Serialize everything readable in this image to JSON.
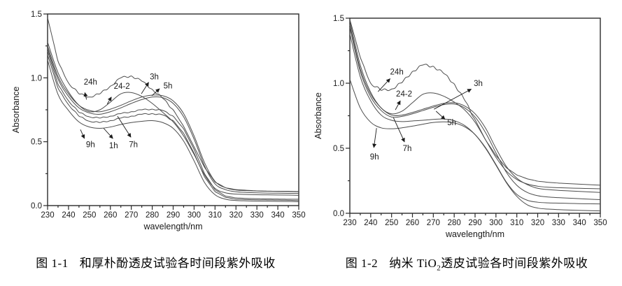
{
  "page": {
    "background": "#ffffff"
  },
  "colors": {
    "curve": "#4d4d4d",
    "axis": "#2a2a2a",
    "text": "#1a1a1a"
  },
  "figures": [
    {
      "caption": {
        "fig": "图 1-1",
        "pre": "和厚朴酚透皮试验各时间段紫外吸收",
        "sub": "",
        "post": ""
      }
    },
    {
      "caption": {
        "fig": "图 1-2",
        "pre": "纳米 TiO",
        "sub": "2",
        "post": "透皮试验各时间段紫外吸收"
      }
    }
  ],
  "chart_data": [
    {
      "type": "line",
      "title": "",
      "xlabel": "wavelength/nm",
      "ylabel": "Absorbance",
      "xlim": [
        230,
        350
      ],
      "ylim": [
        0,
        1.5
      ],
      "x_major_step": 10,
      "x_minor_step": 5,
      "y_major_step": 0.5,
      "y_minor_step": 0.25,
      "grid": false,
      "legend": "none",
      "x": [
        230,
        235,
        240,
        245,
        250,
        255,
        260,
        265,
        270,
        275,
        280,
        285,
        290,
        295,
        300,
        305,
        310,
        315,
        320,
        325,
        330,
        335,
        340,
        345,
        350
      ],
      "series": [
        {
          "name": "24h",
          "wiggle": 0.007,
          "values": [
            1.47,
            1.13,
            0.96,
            0.875,
            0.85,
            0.875,
            0.935,
            1.0,
            1.015,
            0.975,
            0.91,
            0.84,
            0.75,
            0.62,
            0.46,
            0.3,
            0.185,
            0.14,
            0.125,
            0.12,
            0.115,
            0.113,
            0.112,
            0.112,
            0.11
          ]
        },
        {
          "name": "24-2",
          "wiggle": 0,
          "values": [
            1.28,
            1.04,
            0.89,
            0.785,
            0.735,
            0.75,
            0.81,
            0.875,
            0.885,
            0.855,
            0.8,
            0.73,
            0.655,
            0.545,
            0.4,
            0.24,
            0.135,
            0.1,
            0.09,
            0.087,
            0.085,
            0.084,
            0.083,
            0.082,
            0.08
          ]
        },
        {
          "name": "3h",
          "wiggle": 0,
          "values": [
            1.25,
            1.01,
            0.875,
            0.785,
            0.745,
            0.735,
            0.755,
            0.785,
            0.82,
            0.85,
            0.865,
            0.86,
            0.82,
            0.72,
            0.545,
            0.335,
            0.19,
            0.14,
            0.122,
            0.117,
            0.114,
            0.112,
            0.111,
            0.11,
            0.108
          ]
        },
        {
          "name": "5h",
          "wiggle": 0,
          "values": [
            1.23,
            0.99,
            0.855,
            0.765,
            0.725,
            0.715,
            0.735,
            0.765,
            0.8,
            0.83,
            0.85,
            0.845,
            0.8,
            0.695,
            0.52,
            0.31,
            0.17,
            0.125,
            0.108,
            0.103,
            0.1,
            0.098,
            0.097,
            0.096,
            0.095
          ]
        },
        {
          "name": "7h",
          "wiggle": 0.004,
          "values": [
            1.21,
            0.95,
            0.82,
            0.73,
            0.695,
            0.685,
            0.7,
            0.72,
            0.735,
            0.75,
            0.755,
            0.745,
            0.7,
            0.6,
            0.44,
            0.25,
            0.125,
            0.075,
            0.06,
            0.056,
            0.054,
            0.052,
            0.051,
            0.05,
            0.05
          ]
        },
        {
          "name": "1h",
          "wiggle": 0.004,
          "values": [
            1.18,
            0.92,
            0.79,
            0.7,
            0.66,
            0.65,
            0.665,
            0.685,
            0.7,
            0.715,
            0.72,
            0.71,
            0.665,
            0.565,
            0.41,
            0.225,
            0.11,
            0.065,
            0.05,
            0.047,
            0.045,
            0.044,
            0.043,
            0.042,
            0.04
          ]
        },
        {
          "name": "9h",
          "wiggle": 0,
          "values": [
            1.14,
            0.87,
            0.745,
            0.655,
            0.615,
            0.605,
            0.615,
            0.635,
            0.65,
            0.66,
            0.665,
            0.65,
            0.605,
            0.505,
            0.35,
            0.18,
            0.085,
            0.05,
            0.04,
            0.037,
            0.035,
            0.034,
            0.033,
            0.032,
            0.03
          ]
        }
      ],
      "annotations": [
        {
          "label": "24h",
          "lx": 250.5,
          "ly": 0.97,
          "ax1": 248.6,
          "ay1": 0.83,
          "ax2": 247.8,
          "ay2": 0.885
        },
        {
          "label": "24-2",
          "lx": 265.5,
          "ly": 0.935,
          "ax1": 258.5,
          "ay1": 0.795,
          "ax2": 260.5,
          "ay2": 0.85
        },
        {
          "label": "3h",
          "lx": 281,
          "ly": 1.01,
          "ax1": 274.8,
          "ay1": 0.875,
          "ax2": 278.3,
          "ay2": 0.965
        },
        {
          "label": "5h",
          "lx": 287.5,
          "ly": 0.94,
          "ax1": 279.8,
          "ay1": 0.86,
          "ax2": 283.5,
          "ay2": 0.915
        },
        {
          "label": "9h",
          "lx": 250.5,
          "ly": 0.48,
          "ax1": 245.7,
          "ay1": 0.595,
          "ax2": 247.6,
          "ay2": 0.525
        },
        {
          "label": "1h",
          "lx": 261.5,
          "ly": 0.47,
          "ax1": 256.8,
          "ay1": 0.605,
          "ax2": 261.2,
          "ay2": 0.525
        },
        {
          "label": "7h",
          "lx": 271,
          "ly": 0.48,
          "ax1": 263.4,
          "ay1": 0.7,
          "ax2": 269.8,
          "ay2": 0.535
        }
      ]
    },
    {
      "type": "line",
      "title": "",
      "xlabel": "wavelength/nm",
      "ylabel": "Absorbance",
      "xlim": [
        230,
        350
      ],
      "ylim": [
        0,
        1.5
      ],
      "x_major_step": 10,
      "x_minor_step": 5,
      "y_major_step": 0.5,
      "y_minor_step": 0.25,
      "grid": false,
      "legend": "none",
      "x": [
        230,
        235,
        240,
        245,
        250,
        255,
        260,
        265,
        270,
        275,
        280,
        285,
        290,
        295,
        300,
        305,
        310,
        315,
        320,
        325,
        330,
        335,
        340,
        345,
        350
      ],
      "series": [
        {
          "name": "24h",
          "wiggle": 0.009,
          "values": [
            1.49,
            1.2,
            1.0,
            0.945,
            0.955,
            1.005,
            1.09,
            1.14,
            1.13,
            1.075,
            0.995,
            0.87,
            0.72,
            0.565,
            0.445,
            0.35,
            0.295,
            0.265,
            0.247,
            0.238,
            0.232,
            0.228,
            0.224,
            0.22,
            0.216
          ]
        },
        {
          "name": "24-2",
          "wiggle": 0,
          "values": [
            1.48,
            1.14,
            0.93,
            0.81,
            0.765,
            0.785,
            0.85,
            0.915,
            0.925,
            0.9,
            0.855,
            0.795,
            0.7,
            0.565,
            0.43,
            0.325,
            0.26,
            0.225,
            0.208,
            0.2,
            0.197,
            0.194,
            0.192,
            0.19,
            0.188
          ]
        },
        {
          "name": "3h",
          "wiggle": 0,
          "values": [
            1.45,
            1.11,
            0.915,
            0.81,
            0.755,
            0.755,
            0.775,
            0.8,
            0.825,
            0.845,
            0.85,
            0.825,
            0.765,
            0.655,
            0.5,
            0.36,
            0.27,
            0.22,
            0.192,
            0.182,
            0.176,
            0.172,
            0.168,
            0.164,
            0.16
          ]
        },
        {
          "name": "7h",
          "wiggle": 0,
          "values": [
            1.43,
            1.09,
            0.895,
            0.79,
            0.74,
            0.745,
            0.765,
            0.79,
            0.815,
            0.835,
            0.84,
            0.81,
            0.74,
            0.62,
            0.465,
            0.315,
            0.215,
            0.16,
            0.135,
            0.125,
            0.12,
            0.116,
            0.112,
            0.108,
            0.105
          ]
        },
        {
          "name": "5h",
          "wiggle": 0,
          "values": [
            1.38,
            1.05,
            0.865,
            0.755,
            0.715,
            0.705,
            0.71,
            0.715,
            0.722,
            0.725,
            0.712,
            0.675,
            0.605,
            0.505,
            0.375,
            0.24,
            0.145,
            0.1,
            0.085,
            0.08,
            0.078,
            0.076,
            0.074,
            0.073,
            0.072
          ]
        },
        {
          "name": "9h",
          "wiggle": 0,
          "values": [
            1.03,
            0.81,
            0.7,
            0.657,
            0.65,
            0.657,
            0.67,
            0.685,
            0.698,
            0.703,
            0.695,
            0.665,
            0.605,
            0.5,
            0.37,
            0.235,
            0.13,
            0.065,
            0.04,
            0.032,
            0.028,
            0.025,
            0.022,
            0.02,
            0.018
          ]
        }
      ],
      "annotations": [
        {
          "label": "24h",
          "lx": 252.5,
          "ly": 1.09,
          "ax1": 243.5,
          "ay1": 0.935,
          "ax2": 249.3,
          "ay2": 1.035
        },
        {
          "label": "24-2",
          "lx": 256,
          "ly": 0.92,
          "ax1": 251.8,
          "ay1": 0.795,
          "ax2": 254.2,
          "ay2": 0.865
        },
        {
          "label": "3h",
          "lx": 291.5,
          "ly": 1.0,
          "ax1": 270.3,
          "ay1": 0.8,
          "ax2": 288.2,
          "ay2": 0.955
        },
        {
          "label": "5h",
          "lx": 278.8,
          "ly": 0.7,
          "ax1": 271.3,
          "ay1": 0.785,
          "ax2": 275.6,
          "ay2": 0.722
        },
        {
          "label": "7h",
          "lx": 257.5,
          "ly": 0.5,
          "ax1": 250.9,
          "ay1": 0.735,
          "ax2": 256.2,
          "ay2": 0.548
        },
        {
          "label": "9h",
          "lx": 241.8,
          "ly": 0.435,
          "ax1": 242.8,
          "ay1": 0.655,
          "ax2": 241.5,
          "ay2": 0.505
        }
      ]
    }
  ]
}
